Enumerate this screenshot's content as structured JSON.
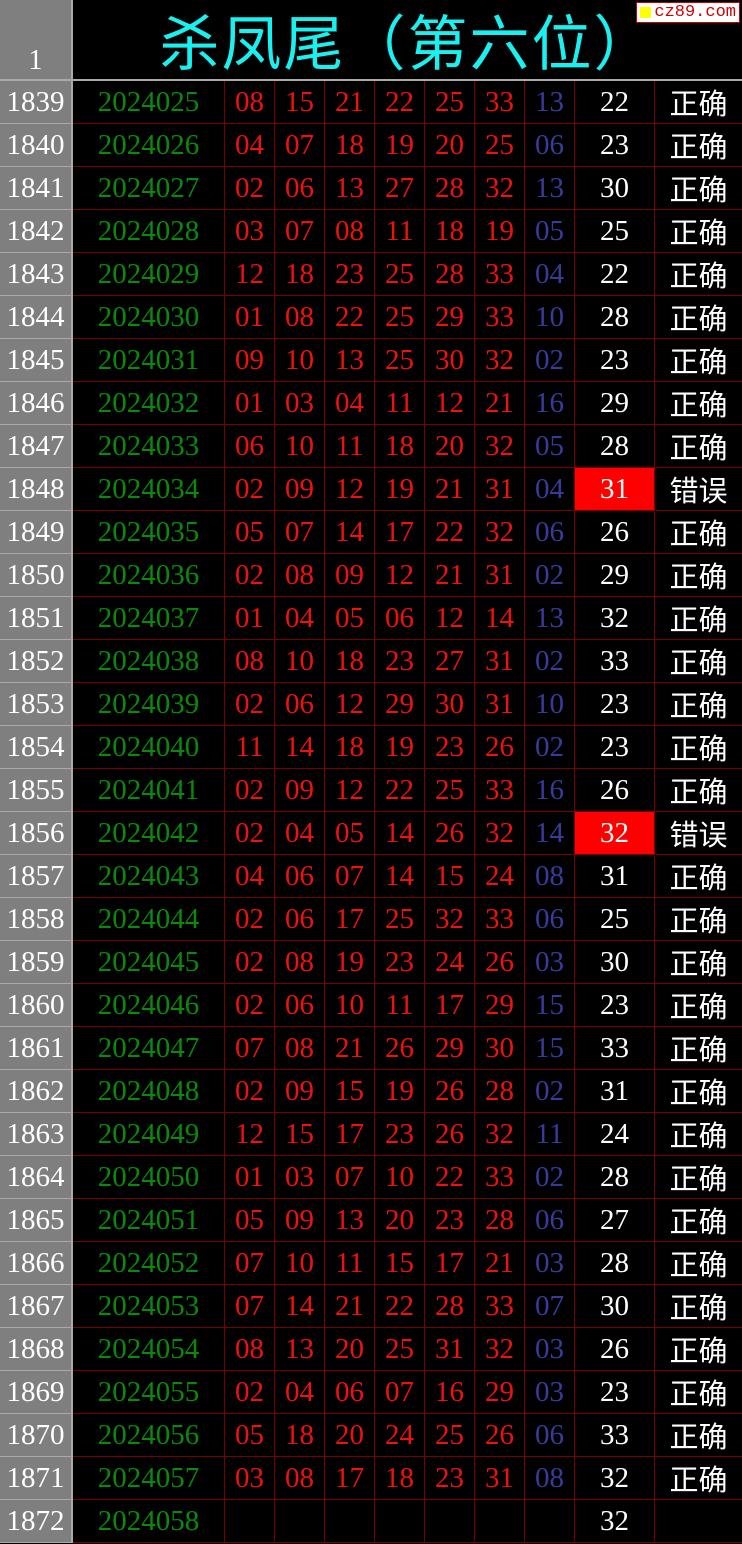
{
  "header": {
    "row_number": "1",
    "title": "杀凤尾（第六位）",
    "logo_text": "cz89.com"
  },
  "colors": {
    "issue": "#0a8a0a",
    "number": "#f01010",
    "special": "#3a3a9a",
    "error_bg": "#ff0000",
    "title": "#19f0f0"
  },
  "rows": [
    [
      "1839",
      "2024025",
      [
        "08",
        "15",
        "21",
        "22",
        "25",
        "33"
      ],
      "13",
      "22",
      "正确"
    ],
    [
      "1840",
      "2024026",
      [
        "04",
        "07",
        "18",
        "19",
        "20",
        "25"
      ],
      "06",
      "23",
      "正确"
    ],
    [
      "1841",
      "2024027",
      [
        "02",
        "06",
        "13",
        "27",
        "28",
        "32"
      ],
      "13",
      "30",
      "正确"
    ],
    [
      "1842",
      "2024028",
      [
        "03",
        "07",
        "08",
        "11",
        "18",
        "19"
      ],
      "05",
      "25",
      "正确"
    ],
    [
      "1843",
      "2024029",
      [
        "12",
        "18",
        "23",
        "25",
        "28",
        "33"
      ],
      "04",
      "22",
      "正确"
    ],
    [
      "1844",
      "2024030",
      [
        "01",
        "08",
        "22",
        "25",
        "29",
        "33"
      ],
      "10",
      "28",
      "正确"
    ],
    [
      "1845",
      "2024031",
      [
        "09",
        "10",
        "13",
        "25",
        "30",
        "32"
      ],
      "02",
      "23",
      "正确"
    ],
    [
      "1846",
      "2024032",
      [
        "01",
        "03",
        "04",
        "11",
        "12",
        "21"
      ],
      "16",
      "29",
      "正确"
    ],
    [
      "1847",
      "2024033",
      [
        "06",
        "10",
        "11",
        "18",
        "20",
        "32"
      ],
      "05",
      "28",
      "正确"
    ],
    [
      "1848",
      "2024034",
      [
        "02",
        "09",
        "12",
        "19",
        "21",
        "31"
      ],
      "04",
      "31",
      "错误"
    ],
    [
      "1849",
      "2024035",
      [
        "05",
        "07",
        "14",
        "17",
        "22",
        "32"
      ],
      "06",
      "26",
      "正确"
    ],
    [
      "1850",
      "2024036",
      [
        "02",
        "08",
        "09",
        "12",
        "21",
        "31"
      ],
      "02",
      "29",
      "正确"
    ],
    [
      "1851",
      "2024037",
      [
        "01",
        "04",
        "05",
        "06",
        "12",
        "14"
      ],
      "13",
      "32",
      "正确"
    ],
    [
      "1852",
      "2024038",
      [
        "08",
        "10",
        "18",
        "23",
        "27",
        "31"
      ],
      "02",
      "33",
      "正确"
    ],
    [
      "1853",
      "2024039",
      [
        "02",
        "06",
        "12",
        "29",
        "30",
        "31"
      ],
      "10",
      "23",
      "正确"
    ],
    [
      "1854",
      "2024040",
      [
        "11",
        "14",
        "18",
        "19",
        "23",
        "26"
      ],
      "02",
      "23",
      "正确"
    ],
    [
      "1855",
      "2024041",
      [
        "02",
        "09",
        "12",
        "22",
        "25",
        "33"
      ],
      "16",
      "26",
      "正确"
    ],
    [
      "1856",
      "2024042",
      [
        "02",
        "04",
        "05",
        "14",
        "26",
        "32"
      ],
      "14",
      "32",
      "错误"
    ],
    [
      "1857",
      "2024043",
      [
        "04",
        "06",
        "07",
        "14",
        "15",
        "24"
      ],
      "08",
      "31",
      "正确"
    ],
    [
      "1858",
      "2024044",
      [
        "02",
        "06",
        "17",
        "25",
        "32",
        "33"
      ],
      "06",
      "25",
      "正确"
    ],
    [
      "1859",
      "2024045",
      [
        "02",
        "08",
        "19",
        "23",
        "24",
        "26"
      ],
      "03",
      "30",
      "正确"
    ],
    [
      "1860",
      "2024046",
      [
        "02",
        "06",
        "10",
        "11",
        "17",
        "29"
      ],
      "15",
      "23",
      "正确"
    ],
    [
      "1861",
      "2024047",
      [
        "07",
        "08",
        "21",
        "26",
        "29",
        "30"
      ],
      "15",
      "33",
      "正确"
    ],
    [
      "1862",
      "2024048",
      [
        "02",
        "09",
        "15",
        "19",
        "26",
        "28"
      ],
      "02",
      "31",
      "正确"
    ],
    [
      "1863",
      "2024049",
      [
        "12",
        "15",
        "17",
        "23",
        "26",
        "32"
      ],
      "11",
      "24",
      "正确"
    ],
    [
      "1864",
      "2024050",
      [
        "01",
        "03",
        "07",
        "10",
        "22",
        "33"
      ],
      "02",
      "28",
      "正确"
    ],
    [
      "1865",
      "2024051",
      [
        "05",
        "09",
        "13",
        "20",
        "23",
        "28"
      ],
      "06",
      "27",
      "正确"
    ],
    [
      "1866",
      "2024052",
      [
        "07",
        "10",
        "11",
        "15",
        "17",
        "21"
      ],
      "03",
      "28",
      "正确"
    ],
    [
      "1867",
      "2024053",
      [
        "07",
        "14",
        "21",
        "22",
        "28",
        "33"
      ],
      "07",
      "30",
      "正确"
    ],
    [
      "1868",
      "2024054",
      [
        "08",
        "13",
        "20",
        "25",
        "31",
        "32"
      ],
      "03",
      "26",
      "正确"
    ],
    [
      "1869",
      "2024055",
      [
        "02",
        "04",
        "06",
        "07",
        "16",
        "29"
      ],
      "03",
      "23",
      "正确"
    ],
    [
      "1870",
      "2024056",
      [
        "05",
        "18",
        "20",
        "24",
        "25",
        "26"
      ],
      "06",
      "33",
      "正确"
    ],
    [
      "1871",
      "2024057",
      [
        "03",
        "08",
        "17",
        "18",
        "23",
        "31"
      ],
      "08",
      "32",
      "正确"
    ],
    [
      "1872",
      "2024058",
      [
        "",
        "",
        "",
        "",
        "",
        ""
      ],
      "",
      "32",
      ""
    ]
  ]
}
